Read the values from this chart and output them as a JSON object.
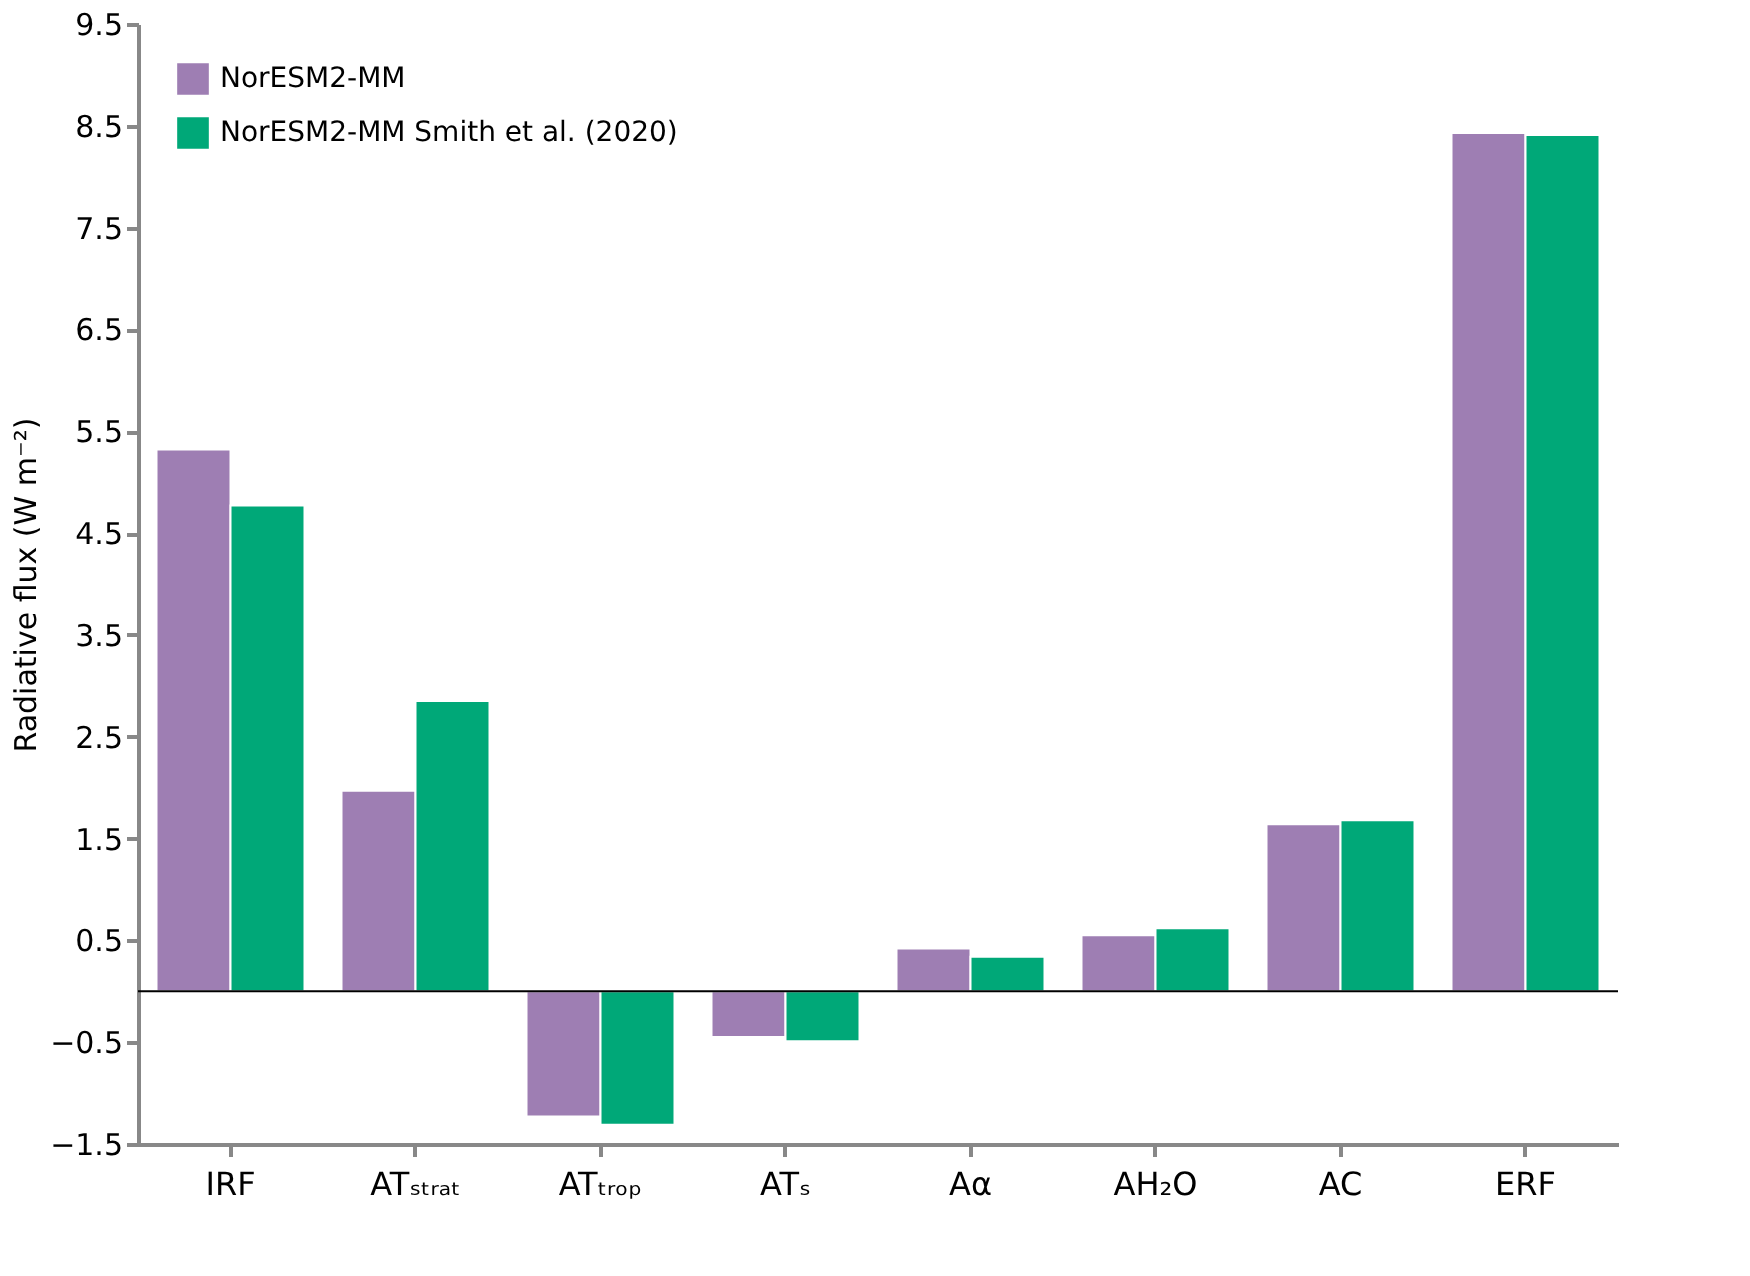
{
  "chart_data": {
    "type": "bar",
    "ylabel": "Radiative flux (W m⁻²)",
    "categories": [
      "IRF",
      "ATₛₜᵣₐₜ",
      "ATₜᵣₒₚ",
      "ATₛ",
      "Aα",
      "AH₂O",
      "AC",
      "ERF"
    ],
    "series": [
      {
        "name": "NorESM2-MM",
        "color": "#9e7eb3",
        "values": [
          5.32,
          1.97,
          -1.23,
          -0.45,
          0.42,
          0.55,
          1.64,
          8.43
        ]
      },
      {
        "name": "NorESM2-MM Smith et al. (2020)",
        "color": "#00a878",
        "values": [
          4.77,
          2.85,
          -1.31,
          -0.49,
          0.34,
          0.62,
          1.68,
          8.41
        ]
      }
    ],
    "ylim": [
      -1.5,
      9.5
    ],
    "yticks": [
      -1.5,
      -0.5,
      0.5,
      1.5,
      2.5,
      3.5,
      4.5,
      5.5,
      6.5,
      7.5,
      8.5,
      9.5
    ],
    "ref_lines": [
      {
        "axis": "y",
        "value": 0
      }
    ],
    "grid": false,
    "legend": "top left"
  }
}
